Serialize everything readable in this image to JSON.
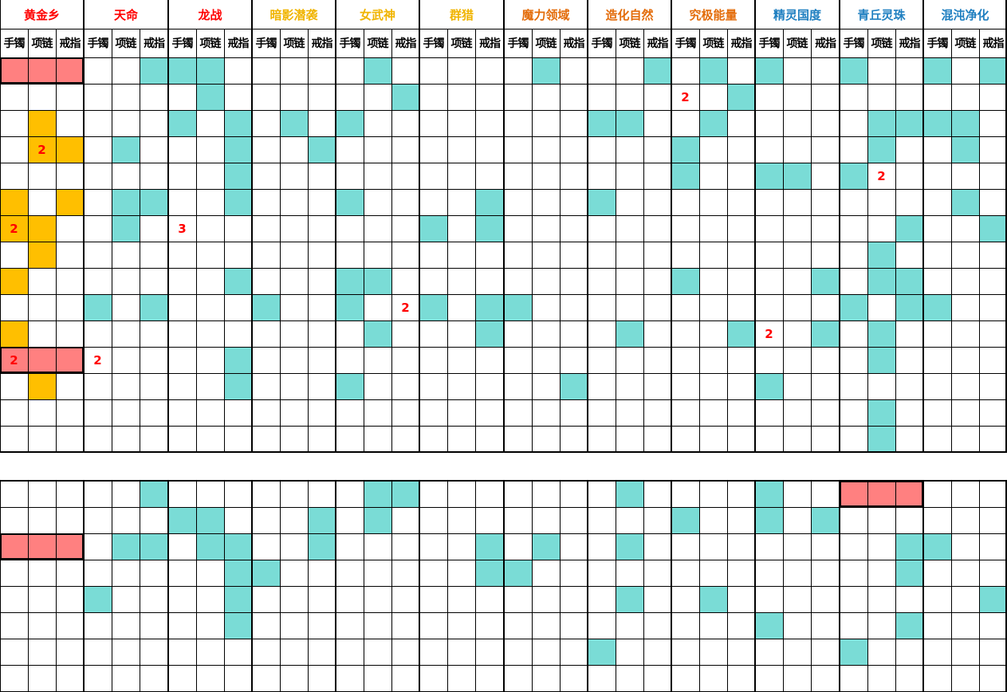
{
  "colors": {
    "teal": "#7adcd6",
    "gold": "#ffbf00",
    "salmon": "#ff8080",
    "number": "#ff0000",
    "grid": "#000000"
  },
  "sets": [
    {
      "name": "黄金乡",
      "color": "#ff0000"
    },
    {
      "name": "天命",
      "color": "#ff0000"
    },
    {
      "name": "龙战",
      "color": "#ff0000"
    },
    {
      "name": "暗影潜袭",
      "color": "#f0b400"
    },
    {
      "name": "女武神",
      "color": "#f0b400"
    },
    {
      "name": "群猎",
      "color": "#f0b400"
    },
    {
      "name": "魔力领域",
      "color": "#e36c0a"
    },
    {
      "name": "造化自然",
      "color": "#e36c0a"
    },
    {
      "name": "究极能量",
      "color": "#e36c0a"
    },
    {
      "name": "精灵国度",
      "color": "#1f7fc0"
    },
    {
      "name": "青丘灵珠",
      "color": "#1f7fc0"
    },
    {
      "name": "混沌净化",
      "color": "#1f7fc0"
    }
  ],
  "slots": [
    "手镯",
    "项链",
    "戒指"
  ],
  "upper_rows": 15,
  "lower_rows": 8,
  "upper_cells": [
    {
      "r": 0,
      "c": 0,
      "fill": "salmon"
    },
    {
      "r": 0,
      "c": 1,
      "fill": "salmon"
    },
    {
      "r": 0,
      "c": 2,
      "fill": "salmon"
    },
    {
      "r": 0,
      "c": 5,
      "fill": "teal"
    },
    {
      "r": 0,
      "c": 6,
      "fill": "teal"
    },
    {
      "r": 0,
      "c": 7,
      "fill": "teal"
    },
    {
      "r": 0,
      "c": 13,
      "fill": "teal"
    },
    {
      "r": 0,
      "c": 19,
      "fill": "teal"
    },
    {
      "r": 0,
      "c": 23,
      "fill": "teal"
    },
    {
      "r": 0,
      "c": 25,
      "fill": "teal"
    },
    {
      "r": 0,
      "c": 27,
      "fill": "teal"
    },
    {
      "r": 0,
      "c": 30,
      "fill": "teal"
    },
    {
      "r": 0,
      "c": 33,
      "fill": "teal"
    },
    {
      "r": 0,
      "c": 35,
      "fill": "teal"
    },
    {
      "r": 1,
      "c": 7,
      "fill": "teal"
    },
    {
      "r": 1,
      "c": 14,
      "fill": "teal"
    },
    {
      "r": 1,
      "c": 24,
      "fill": "",
      "text": "2"
    },
    {
      "r": 1,
      "c": 26,
      "fill": "teal"
    },
    {
      "r": 2,
      "c": 1,
      "fill": "gold"
    },
    {
      "r": 2,
      "c": 6,
      "fill": "teal"
    },
    {
      "r": 2,
      "c": 8,
      "fill": "teal"
    },
    {
      "r": 2,
      "c": 10,
      "fill": "teal"
    },
    {
      "r": 2,
      "c": 12,
      "fill": "teal"
    },
    {
      "r": 2,
      "c": 21,
      "fill": "teal"
    },
    {
      "r": 2,
      "c": 22,
      "fill": "teal"
    },
    {
      "r": 2,
      "c": 25,
      "fill": "teal"
    },
    {
      "r": 2,
      "c": 31,
      "fill": "teal"
    },
    {
      "r": 2,
      "c": 32,
      "fill": "teal"
    },
    {
      "r": 2,
      "c": 33,
      "fill": "teal"
    },
    {
      "r": 2,
      "c": 34,
      "fill": "teal"
    },
    {
      "r": 3,
      "c": 1,
      "fill": "gold",
      "text": "2"
    },
    {
      "r": 3,
      "c": 2,
      "fill": "gold"
    },
    {
      "r": 3,
      "c": 4,
      "fill": "teal"
    },
    {
      "r": 3,
      "c": 8,
      "fill": "teal"
    },
    {
      "r": 3,
      "c": 11,
      "fill": "teal"
    },
    {
      "r": 3,
      "c": 24,
      "fill": "teal"
    },
    {
      "r": 3,
      "c": 31,
      "fill": "teal"
    },
    {
      "r": 3,
      "c": 34,
      "fill": "teal"
    },
    {
      "r": 4,
      "c": 8,
      "fill": "teal"
    },
    {
      "r": 4,
      "c": 24,
      "fill": "teal"
    },
    {
      "r": 4,
      "c": 27,
      "fill": "teal"
    },
    {
      "r": 4,
      "c": 28,
      "fill": "teal"
    },
    {
      "r": 4,
      "c": 30,
      "fill": "teal"
    },
    {
      "r": 4,
      "c": 31,
      "fill": "",
      "text": "2"
    },
    {
      "r": 5,
      "c": 0,
      "fill": "gold"
    },
    {
      "r": 5,
      "c": 2,
      "fill": "gold"
    },
    {
      "r": 5,
      "c": 4,
      "fill": "teal"
    },
    {
      "r": 5,
      "c": 5,
      "fill": "teal"
    },
    {
      "r": 5,
      "c": 8,
      "fill": "teal"
    },
    {
      "r": 5,
      "c": 12,
      "fill": "teal"
    },
    {
      "r": 5,
      "c": 17,
      "fill": "teal"
    },
    {
      "r": 5,
      "c": 21,
      "fill": "teal"
    },
    {
      "r": 5,
      "c": 34,
      "fill": "teal"
    },
    {
      "r": 6,
      "c": 0,
      "fill": "gold",
      "text": "2"
    },
    {
      "r": 6,
      "c": 1,
      "fill": "gold"
    },
    {
      "r": 6,
      "c": 4,
      "fill": "teal"
    },
    {
      "r": 6,
      "c": 6,
      "fill": "",
      "text": "3"
    },
    {
      "r": 6,
      "c": 15,
      "fill": "teal"
    },
    {
      "r": 6,
      "c": 17,
      "fill": "teal"
    },
    {
      "r": 6,
      "c": 32,
      "fill": "teal"
    },
    {
      "r": 6,
      "c": 35,
      "fill": "teal"
    },
    {
      "r": 7,
      "c": 1,
      "fill": "gold"
    },
    {
      "r": 7,
      "c": 31,
      "fill": "teal"
    },
    {
      "r": 8,
      "c": 0,
      "fill": "gold"
    },
    {
      "r": 8,
      "c": 8,
      "fill": "teal"
    },
    {
      "r": 8,
      "c": 12,
      "fill": "teal"
    },
    {
      "r": 8,
      "c": 13,
      "fill": "teal"
    },
    {
      "r": 8,
      "c": 24,
      "fill": "teal"
    },
    {
      "r": 8,
      "c": 29,
      "fill": "teal"
    },
    {
      "r": 8,
      "c": 31,
      "fill": "teal"
    },
    {
      "r": 8,
      "c": 32,
      "fill": "teal"
    },
    {
      "r": 9,
      "c": 3,
      "fill": "teal"
    },
    {
      "r": 9,
      "c": 5,
      "fill": "teal"
    },
    {
      "r": 9,
      "c": 9,
      "fill": "teal"
    },
    {
      "r": 9,
      "c": 12,
      "fill": "teal"
    },
    {
      "r": 9,
      "c": 14,
      "fill": "",
      "text": "2"
    },
    {
      "r": 9,
      "c": 15,
      "fill": "teal"
    },
    {
      "r": 9,
      "c": 17,
      "fill": "teal"
    },
    {
      "r": 9,
      "c": 18,
      "fill": "teal"
    },
    {
      "r": 9,
      "c": 30,
      "fill": "teal"
    },
    {
      "r": 9,
      "c": 32,
      "fill": "teal"
    },
    {
      "r": 9,
      "c": 33,
      "fill": "teal"
    },
    {
      "r": 10,
      "c": 0,
      "fill": "gold"
    },
    {
      "r": 10,
      "c": 13,
      "fill": "teal"
    },
    {
      "r": 10,
      "c": 17,
      "fill": "teal"
    },
    {
      "r": 10,
      "c": 22,
      "fill": "teal"
    },
    {
      "r": 10,
      "c": 26,
      "fill": "teal"
    },
    {
      "r": 10,
      "c": 27,
      "fill": "",
      "text": "2"
    },
    {
      "r": 10,
      "c": 29,
      "fill": "teal"
    },
    {
      "r": 10,
      "c": 31,
      "fill": "teal"
    },
    {
      "r": 11,
      "c": 0,
      "fill": "salmon",
      "text": "2"
    },
    {
      "r": 11,
      "c": 1,
      "fill": "salmon"
    },
    {
      "r": 11,
      "c": 2,
      "fill": "salmon"
    },
    {
      "r": 11,
      "c": 3,
      "fill": "",
      "text": "2"
    },
    {
      "r": 11,
      "c": 8,
      "fill": "teal"
    },
    {
      "r": 11,
      "c": 31,
      "fill": "teal"
    },
    {
      "r": 12,
      "c": 1,
      "fill": "gold"
    },
    {
      "r": 12,
      "c": 8,
      "fill": "teal"
    },
    {
      "r": 12,
      "c": 12,
      "fill": "teal"
    },
    {
      "r": 12,
      "c": 20,
      "fill": "teal"
    },
    {
      "r": 12,
      "c": 27,
      "fill": "teal"
    },
    {
      "r": 13,
      "c": 31,
      "fill": "teal"
    },
    {
      "r": 14,
      "c": 31,
      "fill": "teal"
    }
  ],
  "lower_cells": [
    {
      "r": 0,
      "c": 5,
      "fill": "teal"
    },
    {
      "r": 0,
      "c": 13,
      "fill": "teal"
    },
    {
      "r": 0,
      "c": 14,
      "fill": "teal"
    },
    {
      "r": 0,
      "c": 22,
      "fill": "teal"
    },
    {
      "r": 0,
      "c": 27,
      "fill": "teal"
    },
    {
      "r": 0,
      "c": 30,
      "fill": "salmon"
    },
    {
      "r": 0,
      "c": 31,
      "fill": "salmon"
    },
    {
      "r": 0,
      "c": 32,
      "fill": "salmon"
    },
    {
      "r": 1,
      "c": 6,
      "fill": "teal"
    },
    {
      "r": 1,
      "c": 7,
      "fill": "teal"
    },
    {
      "r": 1,
      "c": 11,
      "fill": "teal"
    },
    {
      "r": 1,
      "c": 13,
      "fill": "teal"
    },
    {
      "r": 1,
      "c": 24,
      "fill": "teal"
    },
    {
      "r": 1,
      "c": 27,
      "fill": "teal"
    },
    {
      "r": 1,
      "c": 29,
      "fill": "teal"
    },
    {
      "r": 2,
      "c": 0,
      "fill": "salmon"
    },
    {
      "r": 2,
      "c": 1,
      "fill": "salmon"
    },
    {
      "r": 2,
      "c": 2,
      "fill": "salmon"
    },
    {
      "r": 2,
      "c": 4,
      "fill": "teal"
    },
    {
      "r": 2,
      "c": 5,
      "fill": "teal"
    },
    {
      "r": 2,
      "c": 7,
      "fill": "teal"
    },
    {
      "r": 2,
      "c": 8,
      "fill": "teal"
    },
    {
      "r": 2,
      "c": 11,
      "fill": "teal"
    },
    {
      "r": 2,
      "c": 17,
      "fill": "teal"
    },
    {
      "r": 2,
      "c": 19,
      "fill": "teal"
    },
    {
      "r": 2,
      "c": 22,
      "fill": "teal"
    },
    {
      "r": 2,
      "c": 32,
      "fill": "teal"
    },
    {
      "r": 2,
      "c": 33,
      "fill": "teal"
    },
    {
      "r": 3,
      "c": 8,
      "fill": "teal"
    },
    {
      "r": 3,
      "c": 9,
      "fill": "teal"
    },
    {
      "r": 3,
      "c": 17,
      "fill": "teal"
    },
    {
      "r": 3,
      "c": 18,
      "fill": "teal"
    },
    {
      "r": 3,
      "c": 32,
      "fill": "teal"
    },
    {
      "r": 4,
      "c": 3,
      "fill": "teal"
    },
    {
      "r": 4,
      "c": 8,
      "fill": "teal"
    },
    {
      "r": 4,
      "c": 22,
      "fill": "teal"
    },
    {
      "r": 4,
      "c": 25,
      "fill": "teal"
    },
    {
      "r": 4,
      "c": 35,
      "fill": "teal"
    },
    {
      "r": 5,
      "c": 8,
      "fill": "teal"
    },
    {
      "r": 5,
      "c": 27,
      "fill": "teal"
    },
    {
      "r": 5,
      "c": 32,
      "fill": "teal"
    },
    {
      "r": 6,
      "c": 21,
      "fill": "teal"
    },
    {
      "r": 6,
      "c": 30,
      "fill": "teal"
    }
  ]
}
